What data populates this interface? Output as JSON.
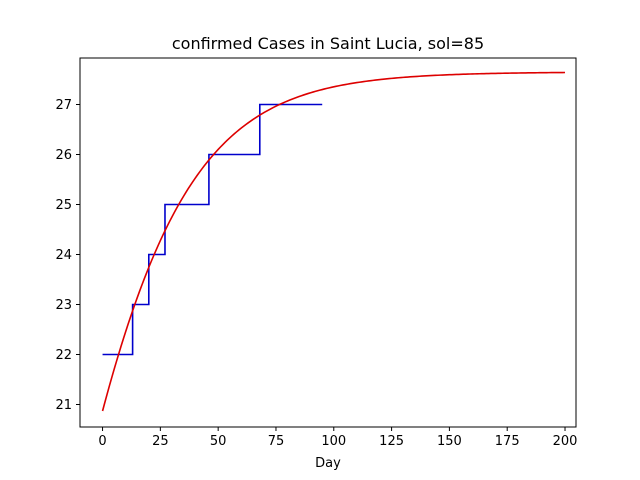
{
  "chart_data": {
    "type": "line",
    "title": "confirmed Cases in Saint Lucia, sol=85",
    "xlabel": "Day",
    "ylabel": "",
    "xlim": [
      -9.75,
      204.75
    ],
    "ylim": [
      20.55,
      27.93
    ],
    "xticks": [
      0,
      25,
      50,
      75,
      100,
      125,
      150,
      175,
      200
    ],
    "yticks": [
      21,
      22,
      23,
      24,
      25,
      26,
      27
    ],
    "grid": false,
    "legend": "none",
    "series": [
      {
        "color": "#0000cc",
        "step": true,
        "x": [
          0,
          13,
          13,
          20,
          20,
          27,
          27,
          46,
          46,
          68,
          68,
          95
        ],
        "y": [
          22,
          22,
          23,
          23,
          24,
          24,
          25,
          25,
          26,
          26,
          27,
          27
        ]
      },
      {
        "color": "#dd0000",
        "model": "logistic",
        "x_range": [
          0,
          200
        ],
        "K": 27.65,
        "y0": 20.87,
        "r": 0.034
      }
    ]
  }
}
